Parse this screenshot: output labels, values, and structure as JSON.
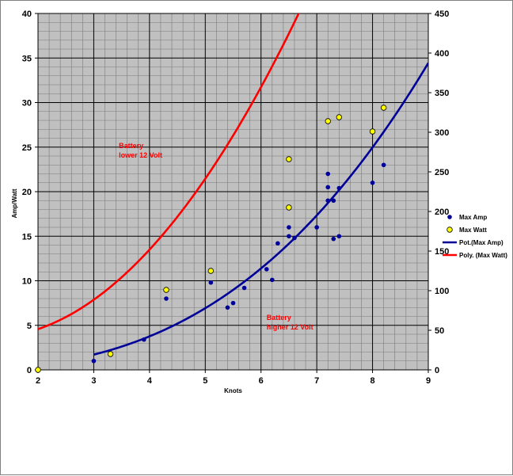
{
  "chart_data": {
    "type": "scatter",
    "x_axis": {
      "label": "Knots",
      "range": [
        2,
        9
      ],
      "ticks": [
        2,
        3,
        4,
        5,
        6,
        7,
        8,
        9
      ],
      "minor_step": 0.2
    },
    "y_left_axis": {
      "label": "Amp/Watt",
      "range": [
        0,
        40
      ],
      "ticks": [
        0,
        5,
        10,
        15,
        20,
        25,
        30,
        35,
        40
      ],
      "minor_step": 1
    },
    "y_right_axis": {
      "range": [
        0,
        450
      ],
      "ticks": [
        0,
        50,
        100,
        150,
        200,
        250,
        300,
        350,
        400,
        450
      ]
    },
    "grid": true,
    "plot_background": "#c0c0c0",
    "legend_position": "right",
    "series": [
      {
        "name": "Max Amp",
        "kind": "scatter",
        "axis": "left",
        "color": "#000099",
        "points": [
          [
            3.0,
            1.0
          ],
          [
            3.9,
            3.4
          ],
          [
            4.3,
            8.0
          ],
          [
            5.1,
            9.8
          ],
          [
            5.4,
            7.0
          ],
          [
            5.5,
            7.5
          ],
          [
            5.7,
            9.2
          ],
          [
            6.1,
            11.3
          ],
          [
            6.2,
            10.1
          ],
          [
            6.3,
            14.2
          ],
          [
            6.5,
            15.0
          ],
          [
            6.5,
            16.0
          ],
          [
            6.6,
            14.8
          ],
          [
            7.0,
            16.0
          ],
          [
            7.2,
            22.0
          ],
          [
            7.2,
            20.5
          ],
          [
            7.2,
            19.0
          ],
          [
            7.3,
            19.0
          ],
          [
            7.3,
            14.7
          ],
          [
            7.4,
            15.0
          ],
          [
            7.4,
            20.4
          ],
          [
            8.0,
            21.0
          ],
          [
            8.2,
            23.0
          ]
        ]
      },
      {
        "name": "Max Watt",
        "kind": "scatter",
        "axis": "right",
        "color": "#ffff00",
        "points": [
          [
            2.0,
            0
          ],
          [
            3.3,
            20
          ],
          [
            4.3,
            101
          ],
          [
            5.1,
            125
          ],
          [
            6.5,
            266
          ],
          [
            6.5,
            205
          ],
          [
            7.2,
            314
          ],
          [
            7.4,
            319
          ],
          [
            8.0,
            301
          ],
          [
            8.2,
            331
          ]
        ]
      },
      {
        "name": "Pot.(Max Amp)",
        "kind": "trendline",
        "model": "power",
        "axis": "left",
        "color": "#000099",
        "coefficient": 0.0855,
        "exponent": 2.73,
        "x_range": [
          3,
          9
        ]
      },
      {
        "name": "Poly. (Max Watt)",
        "kind": "trendline",
        "model": "polynomial",
        "axis": "right",
        "color": "#ff0000",
        "coefficients": [
          55.82,
          -28.4,
          13.1
        ],
        "x_range": [
          2,
          9
        ]
      }
    ],
    "annotations": [
      {
        "text": [
          "Battery",
          "lower 12 Volt"
        ],
        "x": 3.45,
        "y": 24.9,
        "color": "#ff0000"
      },
      {
        "text": [
          "Battery",
          "higher 12 Volt"
        ],
        "x": 6.1,
        "y": 5.6,
        "color": "#ff0000"
      }
    ]
  }
}
